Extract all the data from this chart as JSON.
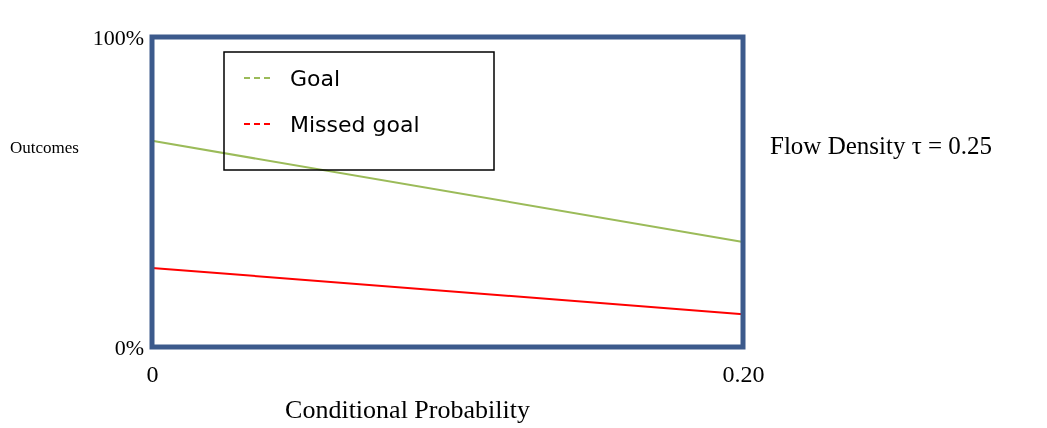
{
  "chart_data": {
    "type": "line",
    "xlabel": "Conditional Probability",
    "ylabel": "Outcomes",
    "annotations": [
      "Flow Density τ = 0.25"
    ],
    "x": [
      0,
      0.2
    ],
    "series": [
      {
        "name": "Goal",
        "color": "#9bbb59",
        "values": [
          66.5,
          33.9
        ]
      },
      {
        "name": "Missed goal",
        "color": "#ff0000",
        "values": [
          25.5,
          10.6
        ]
      }
    ],
    "xlim": [
      0,
      0.2
    ],
    "xticks": [
      0,
      {
        "value": 0.2,
        "label": "0.20"
      }
    ],
    "ylim": [
      0,
      100
    ],
    "yticks": [
      {
        "value": 0,
        "label": "0%"
      },
      {
        "value": 100,
        "label": "100%"
      }
    ],
    "legend": "top left",
    "marker": "none",
    "line_style": "solid"
  }
}
